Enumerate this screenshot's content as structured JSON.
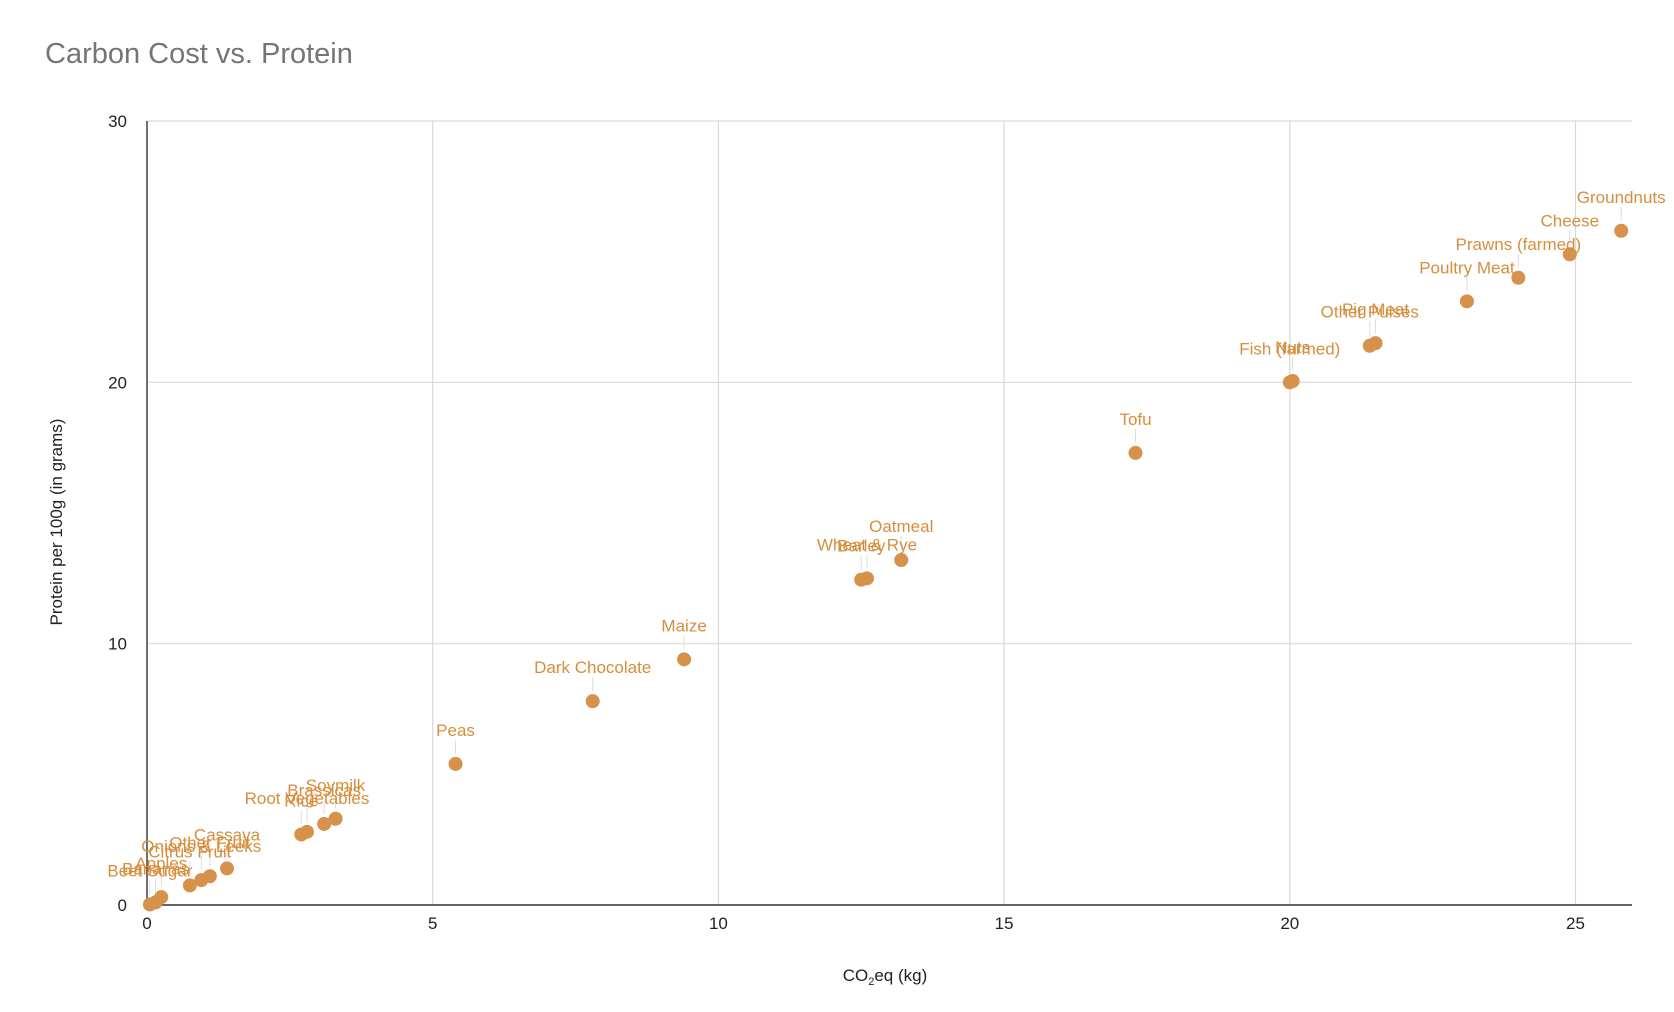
{
  "chart_data": {
    "type": "scatter",
    "title": "Carbon Cost vs. Protein",
    "xlabel_main": "CO",
    "xlabel_sub": "2",
    "xlabel_rest": "eq (kg)",
    "ylabel": "Protein per 100g (in grams)",
    "xlim": [
      0,
      26
    ],
    "ylim": [
      0,
      30
    ],
    "x_ticks": [
      0,
      5,
      10,
      15,
      20,
      25
    ],
    "y_ticks": [
      0,
      10,
      20,
      30
    ],
    "grid": true,
    "color": "#d6914a",
    "label_color": "#d68e3d",
    "points": [
      {
        "label": "Groundnuts",
        "x": 25.8,
        "y": 25.8
      },
      {
        "label": "Cheese",
        "x": 24.9,
        "y": 24.9
      },
      {
        "label": "Prawns (farmed)",
        "x": 24.0,
        "y": 24.0
      },
      {
        "label": "Poultry Meat",
        "x": 23.1,
        "y": 23.1
      },
      {
        "label": "Pig Meat",
        "x": 21.5,
        "y": 21.5
      },
      {
        "label": "Other Pulses",
        "x": 21.4,
        "y": 21.4
      },
      {
        "label": "Fish (farmed)",
        "x": 20.0,
        "y": 20.0
      },
      {
        "label": "Nuts",
        "x": 20.05,
        "y": 20.05
      },
      {
        "label": "Tofu",
        "x": 17.3,
        "y": 17.3
      },
      {
        "label": "Oatmeal",
        "x": 13.2,
        "y": 13.2
      },
      {
        "label": "Wheat & Rye",
        "x": 12.6,
        "y": 12.5
      },
      {
        "label": "Barley",
        "x": 12.5,
        "y": 12.45
      },
      {
        "label": "Maize",
        "x": 9.4,
        "y": 9.4
      },
      {
        "label": "Dark Chocolate",
        "x": 7.8,
        "y": 7.8
      },
      {
        "label": "Peas",
        "x": 5.4,
        "y": 5.4
      },
      {
        "label": "Soymilk",
        "x": 3.3,
        "y": 3.3
      },
      {
        "label": "Brassicas",
        "x": 3.1,
        "y": 3.1
      },
      {
        "label": "Root Vegetables",
        "x": 2.8,
        "y": 2.8
      },
      {
        "label": "Rice",
        "x": 2.7,
        "y": 2.7
      },
      {
        "label": "Cassava",
        "x": 1.4,
        "y": 1.4
      },
      {
        "label": "Other Fruit",
        "x": 1.1,
        "y": 1.1
      },
      {
        "label": "Onions & Leeks",
        "x": 0.95,
        "y": 0.95
      },
      {
        "label": "Citrus Fruit",
        "x": 0.75,
        "y": 0.75
      },
      {
        "label": "Apples",
        "x": 0.25,
        "y": 0.3
      },
      {
        "label": "Bananas",
        "x": 0.15,
        "y": 0.1
      },
      {
        "label": "Beet Sugar",
        "x": 0.05,
        "y": 0.02
      }
    ]
  }
}
